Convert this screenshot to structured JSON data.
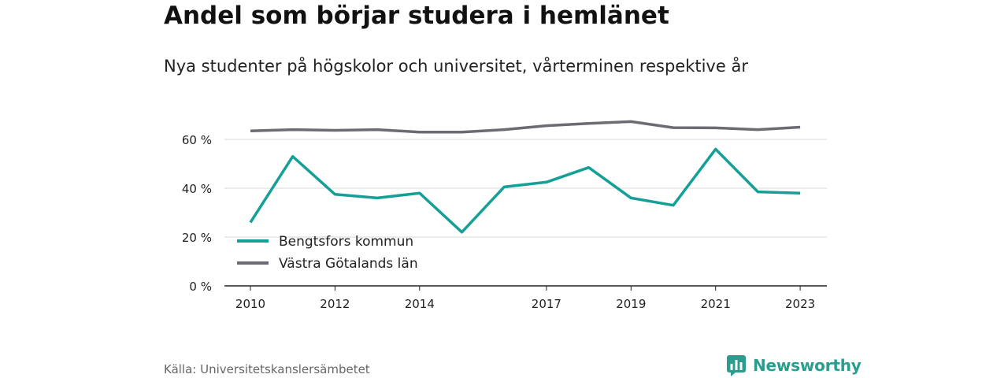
{
  "title": "Andel som börjar studera i hemlänet",
  "subtitle": "Nya studenter på högskolor och universitet, vårterminen respektive år",
  "source": "Källa: Universitetskanslersämbetet",
  "brand": {
    "name": "Newsworthy",
    "icon": "newsworthy-logo-icon",
    "color": "#2a9d8f"
  },
  "chart_data": {
    "type": "line",
    "x": [
      2010,
      2011,
      2012,
      2013,
      2014,
      2015,
      2016,
      2017,
      2018,
      2019,
      2020,
      2021,
      2022,
      2023
    ],
    "xticks": [
      2010,
      2012,
      2014,
      2017,
      2019,
      2021,
      2023
    ],
    "yticks": [
      0,
      20,
      40,
      60
    ],
    "ytick_labels": [
      "0 %",
      "20 %",
      "40 %",
      "60 %"
    ],
    "ylim": [
      0,
      70
    ],
    "grid": true,
    "legend_position": "bottom-left",
    "series": [
      {
        "name": "Bengtsfors kommun",
        "color": "#14a096",
        "values": [
          26,
          53,
          37.5,
          36,
          38,
          22,
          40.5,
          42.5,
          48.5,
          36,
          33,
          56,
          38.5,
          38
        ]
      },
      {
        "name": "Västra Götalands län",
        "color": "#6b6b73",
        "values": [
          63.5,
          64,
          63.7,
          64,
          63,
          63,
          64,
          65.6,
          66.5,
          67.3,
          64.8,
          64.7,
          64,
          65
        ]
      }
    ]
  }
}
